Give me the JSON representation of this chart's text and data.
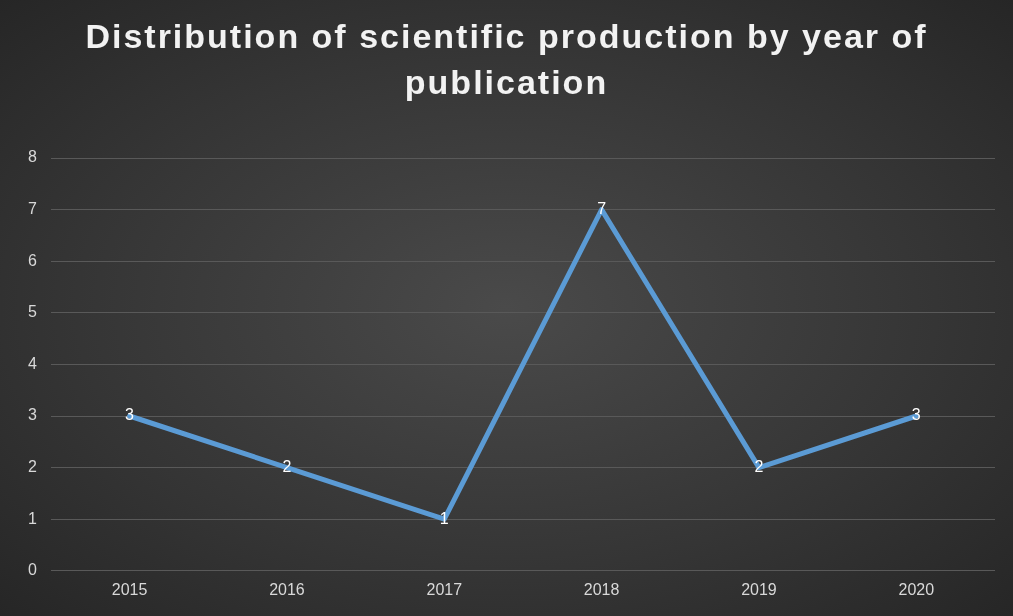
{
  "chart_data": {
    "type": "line",
    "title": "Distribution of scientific production by year of publication",
    "categories": [
      "2015",
      "2016",
      "2017",
      "2018",
      "2019",
      "2020"
    ],
    "series": [
      {
        "color": "#5b9bd5",
        "values": [
          3,
          2,
          1,
          7,
          2,
          3
        ]
      }
    ],
    "ylim": [
      0,
      8
    ],
    "yticks": [
      0,
      1,
      2,
      3,
      4,
      5,
      6,
      7,
      8
    ],
    "grid": "y",
    "legend": false,
    "marker": "none",
    "data_labels": true
  }
}
